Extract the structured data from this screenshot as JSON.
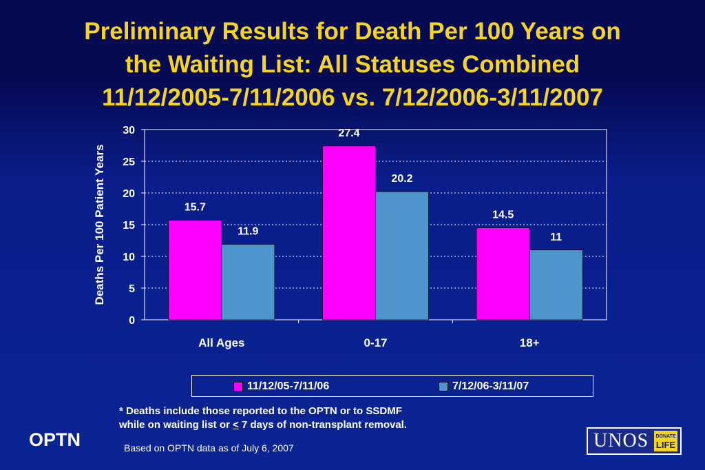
{
  "title": {
    "line1": "Preliminary Results for Death Per 100 Years on",
    "line2": "the Waiting List: All Statuses Combined",
    "line3": "11/12/2005-7/11/2006 vs. 7/12/2006-3/11/2007"
  },
  "chart_data": {
    "type": "bar",
    "categories": [
      "All Ages",
      "0-17",
      "18+"
    ],
    "series": [
      {
        "name": "11/12/05-7/11/06",
        "values": [
          15.7,
          27.4,
          14.5
        ],
        "labels": [
          "15.7",
          "27.4",
          "14.5"
        ],
        "color": "#ff00ff"
      },
      {
        "name": "7/12/06-3/11/07",
        "values": [
          11.9,
          20.2,
          11
        ],
        "labels": [
          "11.9",
          "20.2",
          "11"
        ],
        "color": "#4f95cd"
      }
    ],
    "ylabel": "Deaths Per 100 Patient Years",
    "xlabel": "",
    "ylim": [
      0,
      30
    ],
    "yticks": [
      "0",
      "5",
      "10",
      "15",
      "20",
      "25",
      "30"
    ],
    "grid": true,
    "legend": "bottom"
  },
  "footnote": {
    "line1": "* Deaths include those reported to the OPTN or to SSDMF",
    "line2_pre": "while on waiting list or ",
    "line2_under": "<",
    "line2_post": " 7 days of non-transplant removal."
  },
  "footer": {
    "org": "OPTN",
    "source": "Based on OPTN data as of  July 6, 2007",
    "logo_text": "UNOS",
    "logo_badge_top": "DONATE",
    "logo_badge_bottom": "LIFE"
  },
  "colors": {
    "title": "#f7d51d",
    "background": "#0a1d8a",
    "axis": "#ffffff"
  }
}
